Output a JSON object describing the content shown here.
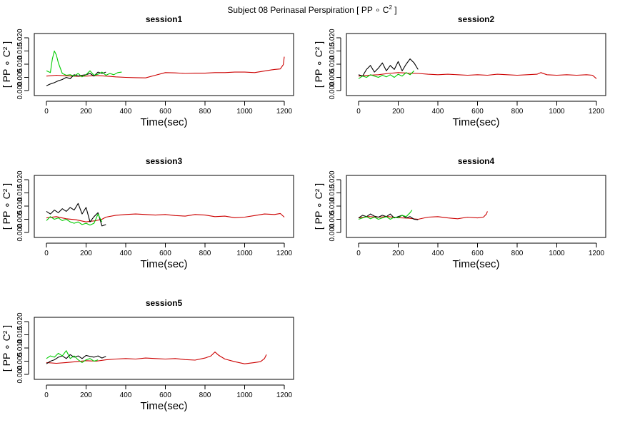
{
  "figure": {
    "title": "Subject 08 Perinasal Perspiration [ PP ∘ C",
    "title_sup": "2",
    "title_end": " ]"
  },
  "colors": {
    "red": "#cc0000",
    "black": "#000000",
    "green": "#00cc00"
  },
  "chart_data": [
    {
      "type": "line",
      "title": "session1",
      "xlabel": "Time(sec)",
      "ylabel": "[ PP ∘ C² ]",
      "xlim": [
        0,
        1200
      ],
      "ylim": [
        0,
        0.02
      ],
      "xticks": [
        0,
        200,
        400,
        600,
        800,
        1000,
        1200
      ],
      "yticks": [
        0.0,
        0.01,
        0.02
      ],
      "ytick_labels": [
        "0.000",
        "0.010",
        "0.020"
      ],
      "ytick_minor": [
        0.005,
        0.015
      ],
      "ytick_minor_labels": [
        "0.005",
        "0.015"
      ],
      "series": [
        {
          "color": "red",
          "x": [
            0,
            50,
            100,
            150,
            200,
            250,
            300,
            350,
            400,
            450,
            500,
            550,
            600,
            650,
            700,
            750,
            800,
            850,
            900,
            950,
            1000,
            1050,
            1100,
            1150,
            1180,
            1195,
            1200
          ],
          "y": [
            0.0055,
            0.0058,
            0.0056,
            0.0054,
            0.0055,
            0.0057,
            0.0055,
            0.0052,
            0.005,
            0.0049,
            0.0048,
            0.0058,
            0.0068,
            0.0067,
            0.0065,
            0.0066,
            0.0066,
            0.0068,
            0.0068,
            0.007,
            0.007,
            0.0068,
            0.0074,
            0.008,
            0.0082,
            0.0098,
            0.0128
          ]
        },
        {
          "color": "black",
          "x": [
            0,
            20,
            40,
            60,
            80,
            100,
            120,
            140,
            160,
            180,
            200,
            220,
            240,
            260,
            280,
            300
          ],
          "y": [
            0.0018,
            0.0025,
            0.003,
            0.0037,
            0.0042,
            0.005,
            0.0045,
            0.006,
            0.0055,
            0.0058,
            0.006,
            0.0065,
            0.0055,
            0.007,
            0.0065,
            0.007
          ]
        },
        {
          "color": "green",
          "x": [
            0,
            20,
            30,
            40,
            50,
            60,
            70,
            80,
            100,
            120,
            140,
            160,
            180,
            200,
            220,
            240,
            260,
            280,
            300,
            320,
            340,
            360,
            380
          ],
          "y": [
            0.0075,
            0.0068,
            0.012,
            0.015,
            0.0135,
            0.0105,
            0.0085,
            0.0065,
            0.0058,
            0.006,
            0.0055,
            0.0065,
            0.0052,
            0.006,
            0.0075,
            0.0058,
            0.0062,
            0.007,
            0.0058,
            0.0065,
            0.006,
            0.0068,
            0.007
          ]
        }
      ]
    },
    {
      "type": "line",
      "title": "session2",
      "xlabel": "Time(sec)",
      "ylabel": "[ PP ∘ C² ]",
      "xlim": [
        0,
        1200
      ],
      "ylim": [
        0,
        0.02
      ],
      "xticks": [
        0,
        200,
        400,
        600,
        800,
        1000,
        1200
      ],
      "yticks": [
        0.0,
        0.01,
        0.02
      ],
      "ytick_labels": [
        "0.000",
        "0.010",
        "0.020"
      ],
      "ytick_minor": [
        0.005,
        0.015
      ],
      "ytick_minor_labels": [
        "0.005",
        "0.015"
      ],
      "series": [
        {
          "color": "red",
          "x": [
            0,
            50,
            100,
            150,
            200,
            250,
            300,
            350,
            400,
            450,
            500,
            550,
            600,
            650,
            700,
            750,
            800,
            850,
            900,
            920,
            950,
            1000,
            1050,
            1100,
            1150,
            1180,
            1200
          ],
          "y": [
            0.0055,
            0.0058,
            0.006,
            0.0065,
            0.0068,
            0.0066,
            0.0065,
            0.0062,
            0.006,
            0.0062,
            0.006,
            0.0058,
            0.006,
            0.0058,
            0.0062,
            0.006,
            0.0058,
            0.006,
            0.0062,
            0.0068,
            0.006,
            0.0058,
            0.006,
            0.0058,
            0.006,
            0.0058,
            0.0045
          ]
        },
        {
          "color": "black",
          "x": [
            0,
            20,
            40,
            60,
            80,
            100,
            120,
            140,
            160,
            180,
            200,
            220,
            240,
            260,
            280,
            300
          ],
          "y": [
            0.006,
            0.0055,
            0.008,
            0.0095,
            0.007,
            0.0085,
            0.0105,
            0.0075,
            0.0095,
            0.008,
            0.011,
            0.0075,
            0.01,
            0.012,
            0.0105,
            0.008
          ]
        },
        {
          "color": "green",
          "x": [
            0,
            20,
            40,
            60,
            80,
            100,
            120,
            140,
            160,
            180,
            200,
            220,
            240,
            260,
            280
          ],
          "y": [
            0.0045,
            0.0055,
            0.005,
            0.006,
            0.0055,
            0.005,
            0.0058,
            0.0052,
            0.006,
            0.005,
            0.0062,
            0.0055,
            0.0068,
            0.006,
            0.0075
          ]
        }
      ]
    },
    {
      "type": "line",
      "title": "session3",
      "xlabel": "Time(sec)",
      "ylabel": "[ PP ∘ C² ]",
      "xlim": [
        0,
        1200
      ],
      "ylim": [
        0,
        0.02
      ],
      "xticks": [
        0,
        200,
        400,
        600,
        800,
        1000,
        1200
      ],
      "yticks": [
        0.0,
        0.01,
        0.02
      ],
      "ytick_labels": [
        "0.000",
        "0.010",
        "0.020"
      ],
      "ytick_minor": [
        0.005,
        0.015
      ],
      "ytick_minor_labels": [
        "0.005",
        "0.015"
      ],
      "series": [
        {
          "color": "red",
          "x": [
            0,
            50,
            100,
            150,
            200,
            250,
            280,
            300,
            350,
            400,
            450,
            500,
            550,
            600,
            650,
            700,
            750,
            800,
            850,
            900,
            950,
            1000,
            1050,
            1100,
            1150,
            1180,
            1200
          ],
          "y": [
            0.0055,
            0.006,
            0.0052,
            0.0048,
            0.004,
            0.0045,
            0.005,
            0.0058,
            0.0065,
            0.0068,
            0.007,
            0.0068,
            0.0066,
            0.0068,
            0.0064,
            0.0062,
            0.0068,
            0.0066,
            0.006,
            0.0062,
            0.0056,
            0.0058,
            0.0064,
            0.007,
            0.0068,
            0.0072,
            0.0058
          ]
        },
        {
          "color": "black",
          "x": [
            0,
            20,
            40,
            60,
            80,
            100,
            120,
            140,
            160,
            180,
            200,
            220,
            240,
            260,
            280,
            300
          ],
          "y": [
            0.008,
            0.007,
            0.0085,
            0.0075,
            0.009,
            0.008,
            0.0095,
            0.0085,
            0.011,
            0.007,
            0.0095,
            0.004,
            0.006,
            0.0075,
            0.0025,
            0.003
          ]
        },
        {
          "color": "green",
          "x": [
            0,
            20,
            40,
            60,
            80,
            100,
            120,
            140,
            160,
            180,
            200,
            220,
            240,
            260,
            280
          ],
          "y": [
            0.0045,
            0.006,
            0.005,
            0.0055,
            0.0045,
            0.005,
            0.004,
            0.0035,
            0.004,
            0.003,
            0.0035,
            0.0028,
            0.0035,
            0.007,
            0.004
          ]
        }
      ]
    },
    {
      "type": "line",
      "title": "session4",
      "xlabel": "Time(sec)",
      "ylabel": "[ PP ∘ C² ]",
      "xlim": [
        0,
        1200
      ],
      "ylim": [
        0,
        0.02
      ],
      "xticks": [
        0,
        200,
        400,
        600,
        800,
        1000,
        1200
      ],
      "yticks": [
        0.0,
        0.01,
        0.02
      ],
      "ytick_labels": [
        "0.000",
        "0.010",
        "0.020"
      ],
      "ytick_minor": [
        0.005,
        0.015
      ],
      "ytick_minor_labels": [
        "0.005",
        "0.015"
      ],
      "series": [
        {
          "color": "red",
          "x": [
            0,
            50,
            100,
            150,
            200,
            250,
            300,
            350,
            400,
            450,
            500,
            550,
            600,
            630,
            645,
            650
          ],
          "y": [
            0.0055,
            0.006,
            0.0058,
            0.006,
            0.0056,
            0.0054,
            0.005,
            0.0058,
            0.006,
            0.0055,
            0.0052,
            0.0058,
            0.0055,
            0.0058,
            0.007,
            0.008
          ]
        },
        {
          "color": "black",
          "x": [
            0,
            20,
            40,
            60,
            80,
            100,
            120,
            140,
            160,
            180,
            200,
            220,
            240,
            260,
            280,
            300
          ],
          "y": [
            0.0055,
            0.0065,
            0.006,
            0.007,
            0.0062,
            0.0058,
            0.0065,
            0.006,
            0.007,
            0.0055,
            0.006,
            0.0065,
            0.0055,
            0.006,
            0.005,
            0.0048
          ]
        },
        {
          "color": "green",
          "x": [
            0,
            20,
            40,
            60,
            80,
            100,
            120,
            140,
            160,
            180,
            200,
            220,
            240,
            260,
            270
          ],
          "y": [
            0.005,
            0.0055,
            0.006,
            0.0052,
            0.0058,
            0.005,
            0.0055,
            0.006,
            0.005,
            0.0058,
            0.0055,
            0.0065,
            0.006,
            0.0075,
            0.0085
          ]
        }
      ]
    },
    {
      "type": "line",
      "title": "session5",
      "xlabel": "Time(sec)",
      "ylabel": "[ PP ∘ C² ]",
      "xlim": [
        0,
        1200
      ],
      "ylim": [
        0,
        0.02
      ],
      "xticks": [
        0,
        200,
        400,
        600,
        800,
        1000,
        1200
      ],
      "yticks": [
        0.0,
        0.01,
        0.02
      ],
      "ytick_labels": [
        "0.000",
        "0.010",
        "0.020"
      ],
      "ytick_minor": [
        0.005,
        0.015
      ],
      "ytick_minor_labels": [
        "0.005",
        "0.015"
      ],
      "series": [
        {
          "color": "red",
          "x": [
            0,
            50,
            100,
            150,
            200,
            250,
            300,
            350,
            400,
            450,
            500,
            550,
            600,
            650,
            700,
            750,
            800,
            830,
            850,
            870,
            900,
            950,
            1000,
            1050,
            1080,
            1100,
            1110
          ],
          "y": [
            0.0045,
            0.0042,
            0.0045,
            0.0048,
            0.0052,
            0.005,
            0.0055,
            0.0058,
            0.006,
            0.0058,
            0.0062,
            0.006,
            0.0058,
            0.006,
            0.0056,
            0.0054,
            0.0062,
            0.007,
            0.0085,
            0.0072,
            0.0058,
            0.0048,
            0.004,
            0.0045,
            0.0048,
            0.006,
            0.0075
          ]
        },
        {
          "color": "black",
          "x": [
            0,
            20,
            40,
            60,
            80,
            100,
            120,
            140,
            160,
            180,
            200,
            220,
            240,
            260,
            280,
            300
          ],
          "y": [
            0.004,
            0.005,
            0.0055,
            0.0065,
            0.007,
            0.006,
            0.0075,
            0.0065,
            0.007,
            0.006,
            0.0072,
            0.0068,
            0.0065,
            0.007,
            0.0062,
            0.0068
          ]
        },
        {
          "color": "green",
          "x": [
            0,
            20,
            40,
            60,
            80,
            100,
            120,
            140,
            160,
            180,
            200,
            220,
            240,
            260
          ],
          "y": [
            0.006,
            0.007,
            0.0065,
            0.008,
            0.007,
            0.009,
            0.006,
            0.007,
            0.0055,
            0.0045,
            0.0055,
            0.006,
            0.005,
            0.0055
          ]
        }
      ]
    }
  ]
}
